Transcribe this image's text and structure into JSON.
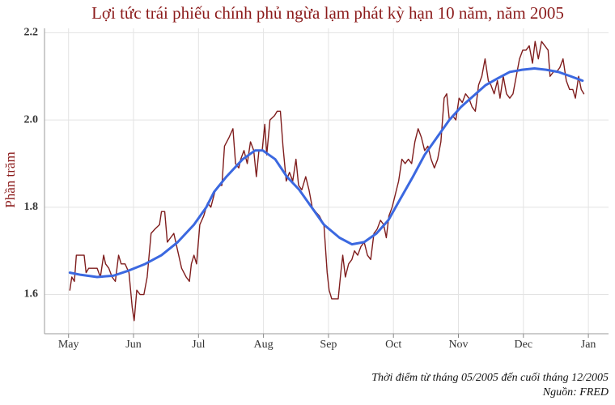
{
  "chart_data": {
    "type": "line",
    "title": "Lợi tức trái phiếu chính phủ ngừa lạm phát kỳ hạn 10 năm, năm 2005",
    "ylabel": "Phần trăm",
    "caption": [
      "Thời điểm từ tháng 05/2005 đến cuối tháng 12/2005",
      "Nguồn: FRED"
    ],
    "xlim": [
      4.63,
      13.31
    ],
    "xticks": [
      {
        "value": 5,
        "label": "May"
      },
      {
        "value": 6,
        "label": "Jun"
      },
      {
        "value": 7,
        "label": "Jul"
      },
      {
        "value": 8,
        "label": "Aug"
      },
      {
        "value": 9,
        "label": "Sep"
      },
      {
        "value": 10,
        "label": "Oct"
      },
      {
        "value": 11,
        "label": "Nov"
      },
      {
        "value": 12,
        "label": "Dec"
      },
      {
        "value": 13,
        "label": "Jan"
      }
    ],
    "ylim": [
      1.51,
      2.21
    ],
    "yticks": [
      1.6,
      1.8,
      {
        "value": 2,
        "label": "2.0"
      },
      2.2
    ],
    "grid": true,
    "series": [
      {
        "color": "#7f1d1d",
        "x": [
          5.02,
          5.05,
          5.09,
          5.12,
          5.19,
          5.24,
          5.27,
          5.31,
          5.37,
          5.44,
          5.49,
          5.54,
          5.57,
          5.62,
          5.67,
          5.72,
          5.77,
          5.81,
          5.87,
          5.93,
          5.98,
          6.01,
          6.05,
          6.1,
          6.16,
          6.21,
          6.27,
          6.33,
          6.4,
          6.43,
          6.48,
          6.52,
          6.57,
          6.62,
          6.68,
          6.74,
          6.81,
          6.86,
          6.89,
          6.93,
          6.97,
          7.02,
          7.08,
          7.14,
          7.19,
          7.26,
          7.31,
          7.36,
          7.4,
          7.47,
          7.53,
          7.57,
          7.62,
          7.65,
          7.7,
          7.75,
          7.8,
          7.85,
          7.89,
          7.93,
          7.98,
          8.02,
          8.05,
          8.1,
          8.17,
          8.21,
          8.26,
          8.3,
          8.35,
          8.4,
          8.45,
          8.5,
          8.54,
          8.59,
          8.65,
          8.7,
          8.75,
          8.8,
          8.86,
          8.93,
          8.98,
          9.01,
          9.05,
          9.1,
          9.15,
          9.19,
          9.22,
          9.26,
          9.31,
          9.36,
          9.4,
          9.45,
          9.5,
          9.55,
          9.6,
          9.65,
          9.7,
          9.75,
          9.8,
          9.85,
          9.89,
          9.93,
          9.98,
          10.03,
          10.08,
          10.13,
          10.18,
          10.23,
          10.28,
          10.33,
          10.38,
          10.43,
          10.48,
          10.53,
          10.58,
          10.63,
          10.68,
          10.73,
          10.78,
          10.82,
          10.86,
          10.91,
          10.96,
          11.01,
          11.06,
          11.11,
          11.16,
          11.21,
          11.26,
          11.31,
          11.36,
          11.41,
          11.46,
          11.5,
          11.55,
          11.6,
          11.64,
          11.69,
          11.74,
          11.79,
          11.84,
          11.89,
          11.94,
          11.99,
          12.04,
          12.09,
          12.14,
          12.18,
          12.23,
          12.28,
          12.33,
          12.38,
          12.41,
          12.46,
          12.51,
          12.56,
          12.61,
          12.66,
          12.71,
          12.76,
          12.8,
          12.85,
          12.89,
          12.93
        ],
        "values": [
          1.61,
          1.64,
          1.63,
          1.69,
          1.69,
          1.69,
          1.65,
          1.66,
          1.66,
          1.66,
          1.64,
          1.69,
          1.67,
          1.66,
          1.64,
          1.63,
          1.69,
          1.67,
          1.67,
          1.65,
          1.57,
          1.54,
          1.61,
          1.6,
          1.6,
          1.64,
          1.74,
          1.75,
          1.76,
          1.79,
          1.79,
          1.72,
          1.73,
          1.74,
          1.7,
          1.66,
          1.64,
          1.63,
          1.67,
          1.69,
          1.67,
          1.76,
          1.78,
          1.81,
          1.8,
          1.84,
          1.85,
          1.85,
          1.94,
          1.96,
          1.98,
          1.9,
          1.89,
          1.91,
          1.93,
          1.9,
          1.95,
          1.93,
          1.87,
          1.93,
          1.93,
          1.99,
          1.92,
          2.0,
          2.01,
          2.02,
          2.02,
          1.94,
          1.86,
          1.88,
          1.86,
          1.91,
          1.85,
          1.84,
          1.87,
          1.84,
          1.8,
          1.79,
          1.78,
          1.76,
          1.65,
          1.61,
          1.59,
          1.59,
          1.59,
          1.65,
          1.69,
          1.64,
          1.67,
          1.68,
          1.7,
          1.69,
          1.71,
          1.72,
          1.69,
          1.68,
          1.74,
          1.75,
          1.77,
          1.76,
          1.73,
          1.78,
          1.8,
          1.83,
          1.86,
          1.91,
          1.9,
          1.91,
          1.9,
          1.95,
          1.98,
          1.96,
          1.93,
          1.94,
          1.91,
          1.89,
          1.91,
          1.95,
          2.05,
          2.06,
          2.0,
          2.01,
          2.0,
          2.05,
          2.04,
          2.06,
          2.05,
          2.03,
          2.02,
          2.08,
          2.1,
          2.14,
          2.09,
          2.08,
          2.06,
          2.09,
          2.05,
          2.1,
          2.06,
          2.05,
          2.06,
          2.1,
          2.14,
          2.16,
          2.16,
          2.17,
          2.13,
          2.18,
          2.14,
          2.18,
          2.17,
          2.16,
          2.1,
          2.11,
          2.11,
          2.12,
          2.14,
          2.09,
          2.07,
          2.07,
          2.05,
          2.1,
          2.07,
          2.06
        ]
      },
      {
        "color": "#3b68e0",
        "x": [
          5.02,
          5.19,
          5.44,
          5.69,
          5.93,
          6.18,
          6.43,
          6.68,
          6.93,
          7.12,
          7.24,
          7.43,
          7.68,
          7.87,
          7.99,
          8.18,
          8.36,
          8.55,
          8.74,
          8.93,
          9.17,
          9.36,
          9.55,
          9.74,
          9.92,
          10.11,
          10.3,
          10.48,
          10.67,
          10.86,
          11.04,
          11.23,
          11.42,
          11.6,
          11.79,
          11.98,
          12.17,
          12.35,
          12.54,
          12.73,
          12.91
        ],
        "values": [
          1.65,
          1.645,
          1.64,
          1.643,
          1.655,
          1.67,
          1.69,
          1.72,
          1.76,
          1.8,
          1.835,
          1.87,
          1.91,
          1.93,
          1.93,
          1.91,
          1.87,
          1.84,
          1.8,
          1.76,
          1.73,
          1.715,
          1.72,
          1.74,
          1.77,
          1.82,
          1.87,
          1.92,
          1.96,
          2.0,
          2.03,
          2.055,
          2.08,
          2.095,
          2.11,
          2.115,
          2.118,
          2.115,
          2.11,
          2.1,
          2.09
        ]
      }
    ]
  }
}
